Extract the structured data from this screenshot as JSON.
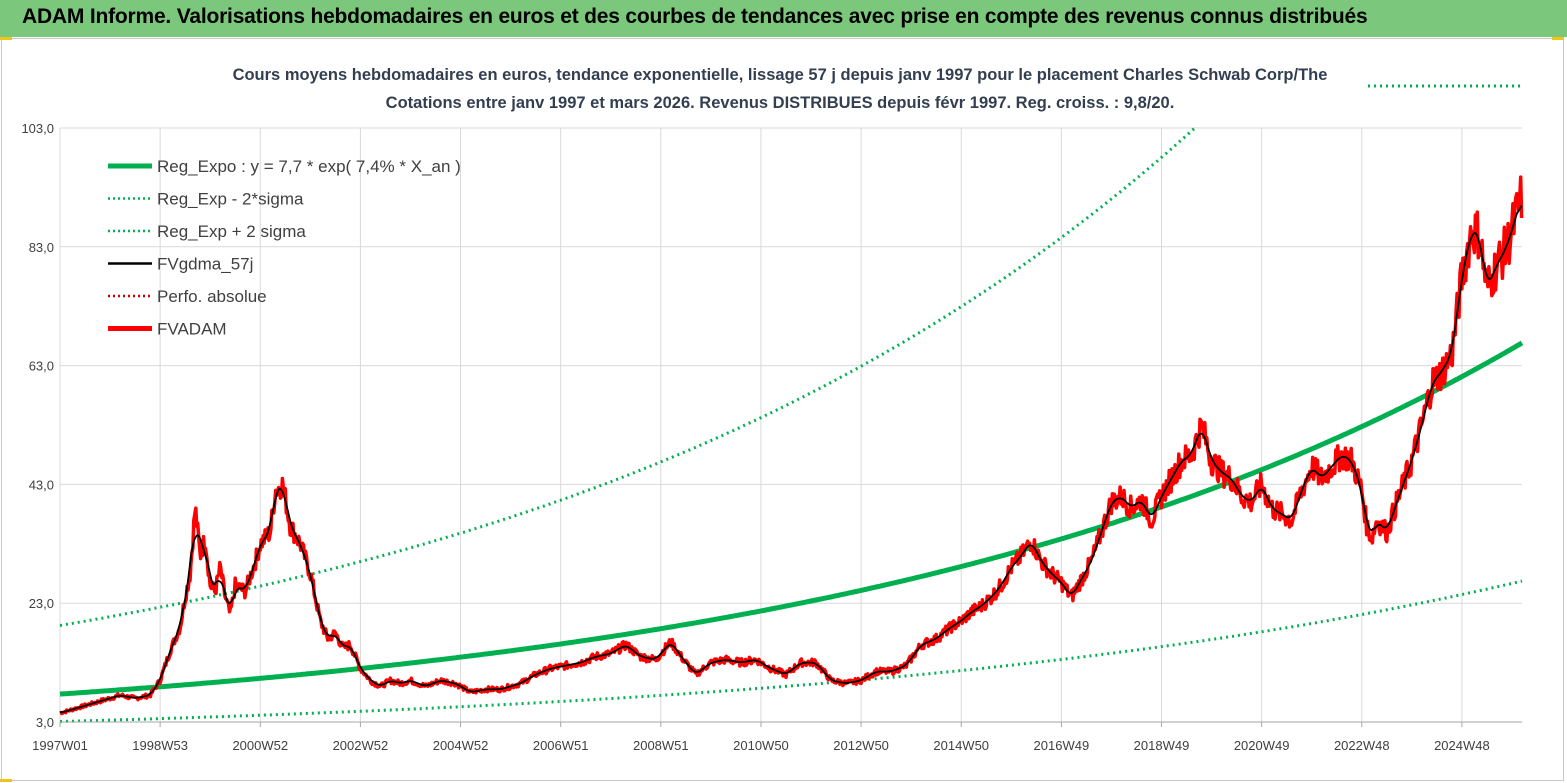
{
  "header": {
    "title": "ADAM Informe. Valorisations hebdomadaires en euros et des courbes de tendances avec prise en compte des revenus connus distribués"
  },
  "chart_data": {
    "type": "line",
    "subtitle_line1": "Cours moyens hebdomadaires en euros, tendance exponentielle, lissage 57 j depuis janv 1997  pour le placement Charles Schwab Corp/The",
    "subtitle_line2": "Cotations entre janv 1997 et mars 2026. Revenus DISTRIBUES depuis févr 1997. Reg. croiss. : 9,8/20.",
    "ylim": [
      3.0,
      103.0
    ],
    "yticks": [
      "3,0",
      "23,0",
      "43,0",
      "63,0",
      "83,0",
      "103,0"
    ],
    "xlim": [
      1997.0,
      2026.2
    ],
    "x_ticks": [
      {
        "label": "1997W01",
        "x": 1997.0
      },
      {
        "label": "1998W53",
        "x": 1999.0
      },
      {
        "label": "2000W52",
        "x": 2001.0
      },
      {
        "label": "2002W52",
        "x": 2003.0
      },
      {
        "label": "2004W52",
        "x": 2005.0
      },
      {
        "label": "2006W51",
        "x": 2007.0
      },
      {
        "label": "2008W51",
        "x": 2009.0
      },
      {
        "label": "2010W50",
        "x": 2011.0
      },
      {
        "label": "2012W50",
        "x": 2013.0
      },
      {
        "label": "2014W50",
        "x": 2015.0
      },
      {
        "label": "2016W49",
        "x": 2017.0
      },
      {
        "label": "2018W49",
        "x": 2019.0
      },
      {
        "label": "2020W49",
        "x": 2021.0
      },
      {
        "label": "2022W48",
        "x": 2023.0
      },
      {
        "label": "2024W48",
        "x": 2025.0
      }
    ],
    "legend": [
      {
        "label": "Reg_Expo : y = 7,7 * exp( 7,4% *  X_an )",
        "color": "#00b050",
        "style": "solid-thick"
      },
      {
        "label": "Reg_Exp - 2*sigma",
        "color": "#00b050",
        "style": "dotted"
      },
      {
        "label": "Reg_Exp + 2 sigma",
        "color": "#00b050",
        "style": "dotted"
      },
      {
        "label": "FVgdma_57j",
        "color": "#000000",
        "style": "solid"
      },
      {
        "label": "Perfo. absolue",
        "color": "#c00000",
        "style": "dotted"
      },
      {
        "label": "FVADAM",
        "color": "#ff0000",
        "style": "solid-thick"
      }
    ],
    "regression": {
      "a": 7.7,
      "rate": 0.074,
      "upper_factor": 2.5,
      "lower_factor": 0.4
    },
    "series": [
      {
        "name": "FVADAM",
        "color": "#ff0000",
        "points": [
          [
            1997.0,
            4.5
          ],
          [
            1997.4,
            5.5
          ],
          [
            1997.8,
            6.5
          ],
          [
            1998.2,
            7.5
          ],
          [
            1998.5,
            7.0
          ],
          [
            1998.8,
            7.5
          ],
          [
            1999.0,
            10.0
          ],
          [
            1999.2,
            15.0
          ],
          [
            1999.4,
            19.0
          ],
          [
            1999.5,
            24.0
          ],
          [
            1999.6,
            28.0
          ],
          [
            1999.7,
            39.0
          ],
          [
            1999.8,
            31.0
          ],
          [
            1999.9,
            34.0
          ],
          [
            2000.0,
            26.0
          ],
          [
            2000.1,
            25.0
          ],
          [
            2000.2,
            29.0
          ],
          [
            2000.3,
            24.0
          ],
          [
            2000.4,
            21.0
          ],
          [
            2000.5,
            26.0
          ],
          [
            2000.7,
            25.0
          ],
          [
            2000.9,
            30.0
          ],
          [
            2001.0,
            33.0
          ],
          [
            2001.2,
            35.0
          ],
          [
            2001.3,
            42.0
          ],
          [
            2001.45,
            43.0
          ],
          [
            2001.6,
            36.0
          ],
          [
            2001.8,
            33.0
          ],
          [
            2002.0,
            28.0
          ],
          [
            2002.2,
            20.0
          ],
          [
            2002.35,
            17.0
          ],
          [
            2002.5,
            18.0
          ],
          [
            2002.65,
            15.5
          ],
          [
            2002.8,
            16.0
          ],
          [
            2003.0,
            12.0
          ],
          [
            2003.2,
            10.0
          ],
          [
            2003.4,
            9.0
          ],
          [
            2003.6,
            10.0
          ],
          [
            2003.8,
            9.5
          ],
          [
            2004.0,
            10.0
          ],
          [
            2004.3,
            9.0
          ],
          [
            2004.6,
            10.0
          ],
          [
            2004.9,
            9.5
          ],
          [
            2005.2,
            8.0
          ],
          [
            2005.5,
            8.5
          ],
          [
            2005.8,
            8.5
          ],
          [
            2006.2,
            9.5
          ],
          [
            2006.5,
            11.0
          ],
          [
            2006.8,
            12.0
          ],
          [
            2007.1,
            12.5
          ],
          [
            2007.4,
            13.0
          ],
          [
            2007.7,
            14.0
          ],
          [
            2008.0,
            14.5
          ],
          [
            2008.3,
            16.0
          ],
          [
            2008.6,
            14.0
          ],
          [
            2008.9,
            13.5
          ],
          [
            2009.2,
            16.5
          ],
          [
            2009.45,
            13.5
          ],
          [
            2009.7,
            11.0
          ],
          [
            2010.0,
            13.0
          ],
          [
            2010.3,
            13.5
          ],
          [
            2010.6,
            13.0
          ],
          [
            2010.9,
            13.5
          ],
          [
            2011.2,
            12.0
          ],
          [
            2011.5,
            11.0
          ],
          [
            2011.8,
            13.0
          ],
          [
            2012.1,
            13.0
          ],
          [
            2012.4,
            10.0
          ],
          [
            2012.7,
            9.5
          ],
          [
            2013.0,
            10.0
          ],
          [
            2013.3,
            11.5
          ],
          [
            2013.6,
            11.5
          ],
          [
            2013.9,
            12.5
          ],
          [
            2014.2,
            16.0
          ],
          [
            2014.5,
            17.0
          ],
          [
            2014.8,
            19.0
          ],
          [
            2015.0,
            20.0
          ],
          [
            2015.2,
            21.5
          ],
          [
            2015.4,
            22.5
          ],
          [
            2015.6,
            24.0
          ],
          [
            2015.8,
            26.0
          ],
          [
            2016.0,
            29.0
          ],
          [
            2016.2,
            31.0
          ],
          [
            2016.4,
            33.5
          ],
          [
            2016.6,
            30.0
          ],
          [
            2016.8,
            28.0
          ],
          [
            2017.0,
            26.5
          ],
          [
            2017.2,
            24.0
          ],
          [
            2017.4,
            27.0
          ],
          [
            2017.6,
            30.0
          ],
          [
            2017.8,
            35.0
          ],
          [
            2018.0,
            40.0
          ],
          [
            2018.2,
            41.0
          ],
          [
            2018.4,
            39.0
          ],
          [
            2018.6,
            40.5
          ],
          [
            2018.8,
            37.0
          ],
          [
            2019.0,
            41.0
          ],
          [
            2019.2,
            44.0
          ],
          [
            2019.4,
            47.0
          ],
          [
            2019.6,
            48.0
          ],
          [
            2019.8,
            53.0
          ],
          [
            2020.0,
            47.0
          ],
          [
            2020.2,
            45.0
          ],
          [
            2020.4,
            44.0
          ],
          [
            2020.6,
            41.0
          ],
          [
            2020.8,
            40.0
          ],
          [
            2021.0,
            43.0
          ],
          [
            2021.2,
            39.0
          ],
          [
            2021.4,
            38.0
          ],
          [
            2021.6,
            37.0
          ],
          [
            2021.8,
            42.0
          ],
          [
            2022.0,
            46.0
          ],
          [
            2022.2,
            44.0
          ],
          [
            2022.4,
            46.0
          ],
          [
            2022.6,
            48.0
          ],
          [
            2022.8,
            47.0
          ],
          [
            2023.0,
            42.0
          ],
          [
            2023.1,
            36.0
          ],
          [
            2023.2,
            34.0
          ],
          [
            2023.3,
            37.0
          ],
          [
            2023.5,
            35.0
          ],
          [
            2023.7,
            40.0
          ],
          [
            2024.0,
            47.0
          ],
          [
            2024.2,
            53.0
          ],
          [
            2024.4,
            60.0
          ],
          [
            2024.6,
            62.0
          ],
          [
            2024.8,
            65.0
          ],
          [
            2025.0,
            78.0
          ],
          [
            2025.2,
            86.0
          ],
          [
            2025.35,
            85.0
          ],
          [
            2025.5,
            76.0
          ],
          [
            2025.7,
            80.0
          ],
          [
            2025.9,
            83.0
          ],
          [
            2026.2,
            91.5
          ]
        ]
      }
    ]
  }
}
